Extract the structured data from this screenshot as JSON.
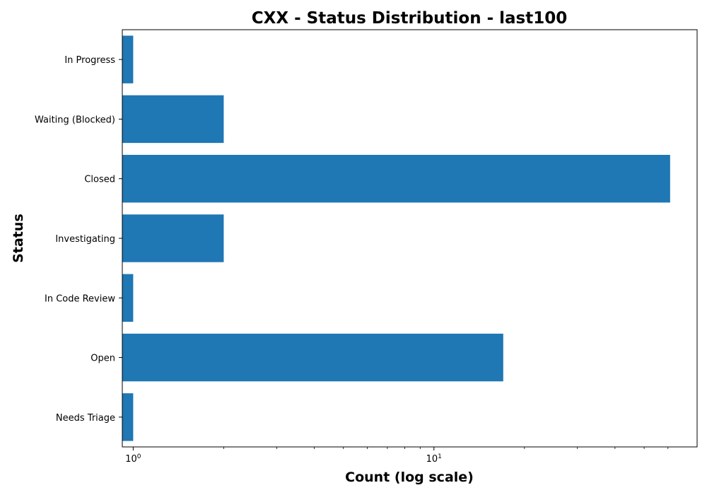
{
  "chart_data": {
    "type": "bar",
    "orientation": "horizontal",
    "title": "CXX - Status Distribution - last100",
    "xlabel": "Count (log scale)",
    "ylabel": "Status",
    "x_scale": "log",
    "xlim": [
      0.92,
      75
    ],
    "x_major_ticks": [
      {
        "value": 1,
        "base": "10",
        "exp": "0"
      },
      {
        "value": 10,
        "base": "10",
        "exp": "1"
      }
    ],
    "x_minor_ticks": [
      2,
      3,
      4,
      5,
      6,
      7,
      8,
      9,
      20,
      30,
      40,
      50,
      60
    ],
    "categories": [
      "Needs Triage",
      "Open",
      "In Code Review",
      "Investigating",
      "Closed",
      "Waiting (Blocked)",
      "In Progress"
    ],
    "values": [
      1,
      17,
      1,
      2,
      61,
      2,
      1
    ],
    "bar_color": "#1f77b4",
    "grid": false,
    "legend": "none"
  }
}
